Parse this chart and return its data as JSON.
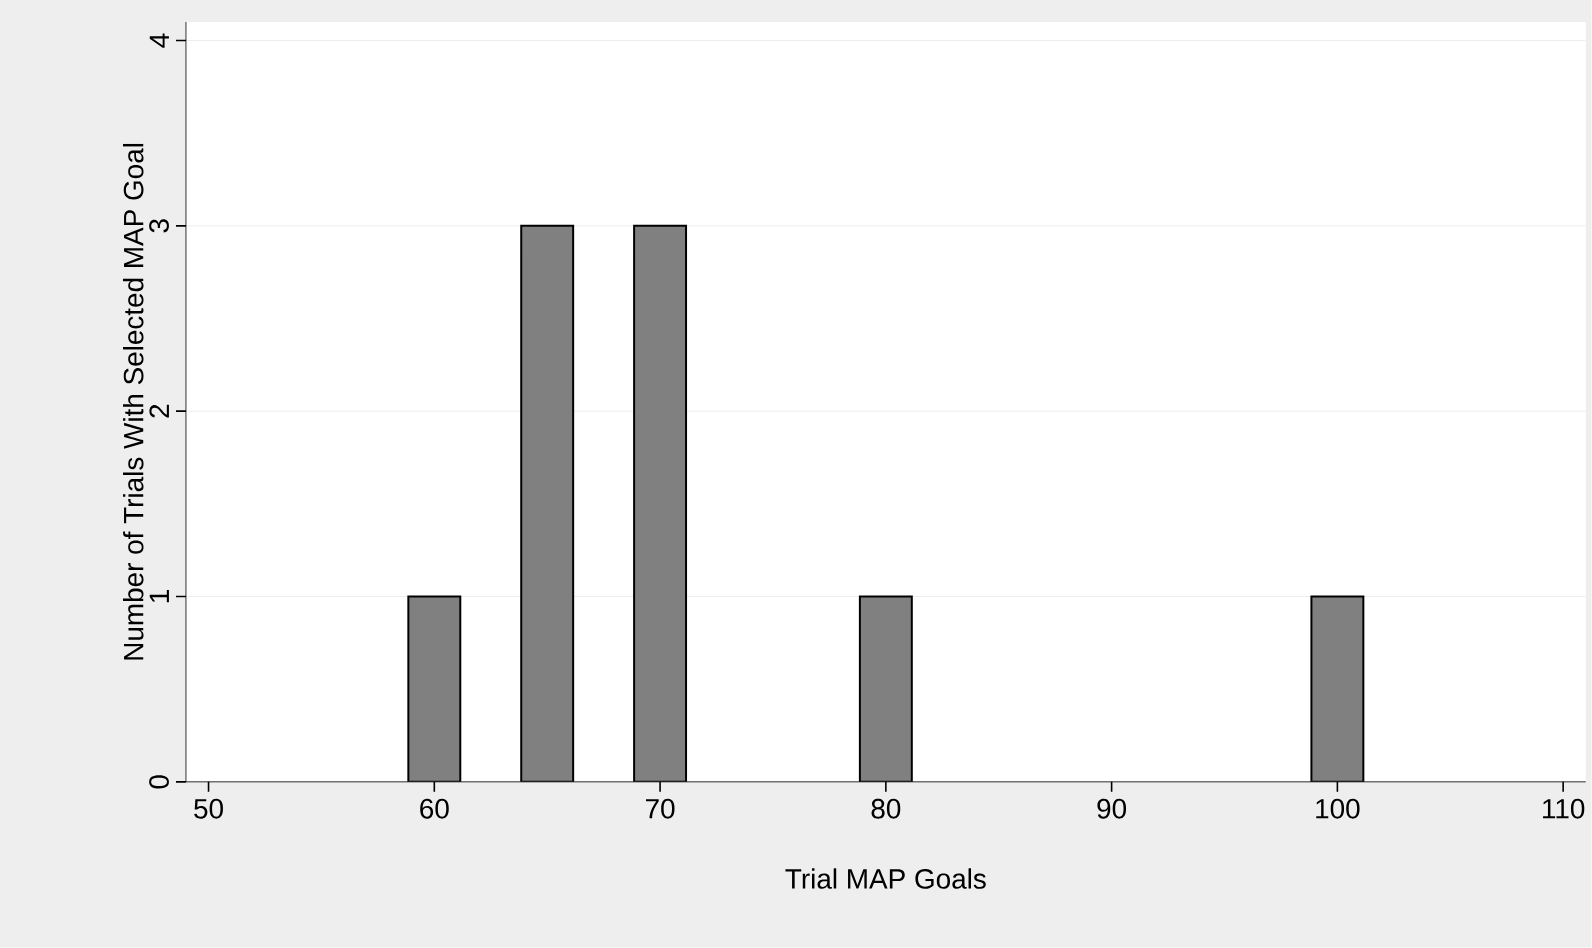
{
  "chart_data": {
    "type": "bar",
    "xlabel": "Trial MAP Goals",
    "ylabel": "Number of Trials With Selected MAP Goal",
    "x": [
      60,
      65,
      70,
      80,
      100
    ],
    "values": [
      1,
      3,
      3,
      1,
      1
    ],
    "color": "#808080",
    "xlim": [
      49,
      111
    ],
    "xticks": [
      50,
      60,
      70,
      80,
      90,
      100,
      110
    ],
    "ylim": [
      0,
      4.1
    ],
    "yticks": [
      0,
      1,
      2,
      3,
      4
    ],
    "grid": "y"
  }
}
